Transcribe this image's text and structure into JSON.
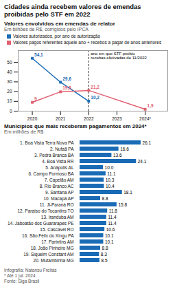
{
  "title": "Cidades ainda recebem valores de emendas\nproibidas pelo STF em 2022",
  "caption": "Infografia: Natansu Freitas\n* Até 1 jul. 2024\nFonte: Siga Brasil",
  "chart_data": [
    {
      "type": "line",
      "title": "Valores envolvidos em emendas de relator",
      "subtitle": "Em bilhões de R$, corrigidos pelo IPCA",
      "series": [
        {
          "name": "Valores autorizados, por ano de autorização",
          "color": "#1a6bb5",
          "marker": "square",
          "x": [
            2020,
            2021,
            2022
          ],
          "values": [
            54.1,
            29.6,
            10.2
          ],
          "value_labels": [
            "54,1",
            "29,6",
            "10,2"
          ]
        },
        {
          "name": "Valores pagos referentes àquele ano + recebos a pagar de anos anteriores",
          "color": "#e06070",
          "marker": "square",
          "x": [
            2020,
            2021,
            2022,
            2024
          ],
          "values": [
            9.0,
            19.8,
            21.2,
            1.9
          ],
          "value_labels": [
            "9",
            "19,8",
            "21,2",
            "1,9"
          ]
        }
      ],
      "xlim": [
        2019.5,
        2024.8
      ],
      "xticks": [
        2020,
        2021,
        2022,
        2023,
        {
          "value": 2024,
          "label": "2024*"
        }
      ],
      "ylim": [
        0,
        62
      ],
      "yticks": [
        0,
        10,
        20,
        30,
        40,
        50
      ],
      "data_labels": true,
      "legend": "top",
      "grid": false,
      "annotations": [
        {
          "x": 2022,
          "text": "ano em que STF proibiu\nrecebas efetivadas de 11/2022"
        }
      ]
    },
    {
      "type": "bar",
      "title": "Municípios que mais receberam pagamentos em 2024*",
      "subtitle": "Em milhões de R$",
      "orientation": "horizontal",
      "categories": [
        "1. Boa Vista Terra Nova PA",
        "2. Nufaã PA",
        "3. Pedra Branca BA",
        "4. Boa Vista RR",
        "5. Anápolis AL",
        "6. Campo Formoso BA",
        "7. Capelão AM",
        "8. Rio Branco AC",
        "9. Santana AP",
        "10. Macapá AP",
        "11. Ji-Paraná RO",
        "12. Paraíso do Tocantins TO",
        "13. Iranduba AM",
        "14. Jaboatão dos Guararapes PE",
        "15. Cascavel RO",
        "16. São Félix do Xingu PA",
        "17. Parintins AM",
        "18. João Pinheiro MG",
        "19. Siqueim Constant AM",
        "20. Mutambinha MG"
      ],
      "values": [
        26.1,
        16.6,
        13.6,
        24.1,
        10.0,
        11.1,
        10.3,
        10.4,
        18.1,
        8.8,
        15.8,
        11.8,
        11.4,
        11.4,
        10.6,
        10.1,
        10.1,
        8.8,
        8.3,
        8.5
      ],
      "value_labels": [
        "26.1",
        "16.6",
        "13.6",
        "24.1",
        "10.0",
        "11.1",
        "10.3",
        "10.4",
        "18.1",
        "8.8",
        "15.8",
        "11.8",
        "11.4",
        "11.4",
        "10.6",
        "10.1",
        "10.1",
        "8.8",
        "8.3",
        "8.5"
      ],
      "color": "#1a6bb5",
      "xlim": [
        0,
        34
      ],
      "data_labels": true,
      "tick_labels": "y",
      "grid": false
    }
  ]
}
